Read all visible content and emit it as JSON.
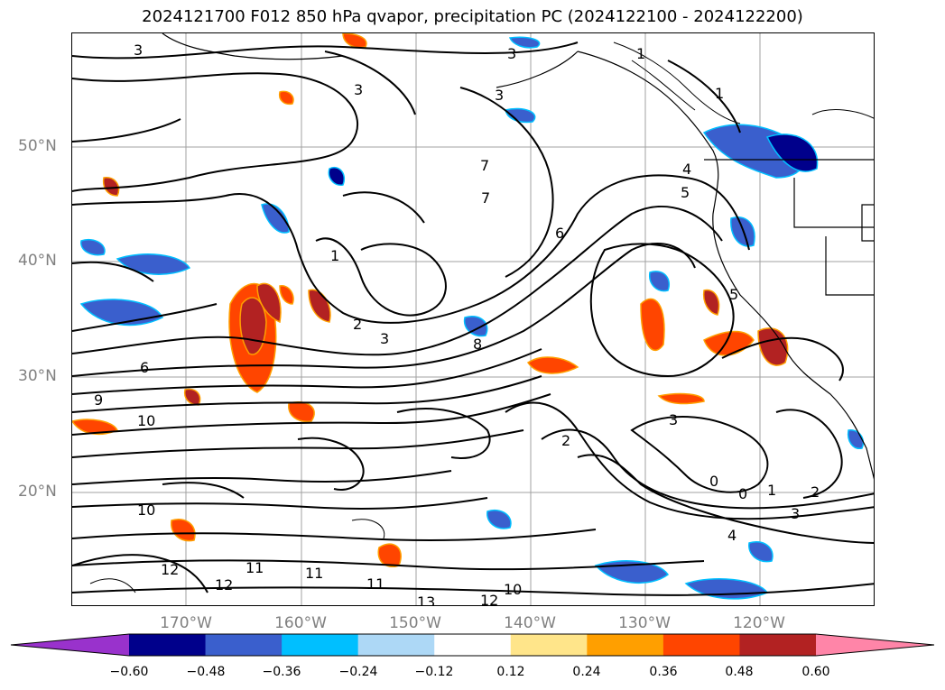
{
  "title": "2024121700 F012 850 hPa qvapor, precipitation PC (2024122100 - 2024122200)",
  "latitude_labels": [
    "50°N",
    "40°N",
    "30°N",
    "20°N"
  ],
  "longitude_labels": [
    "170°W",
    "160°W",
    "150°W",
    "140°W",
    "130°W",
    "120°W"
  ],
  "contour_labels": [
    "3",
    "3",
    "3",
    "3",
    "1",
    "1",
    "4",
    "5",
    "7",
    "7",
    "6",
    "1",
    "2",
    "3",
    "5",
    "6",
    "8",
    "9",
    "10",
    "2",
    "3",
    "0",
    "0",
    "1",
    "2",
    "3",
    "4",
    "10",
    "12",
    "12",
    "11",
    "11",
    "13",
    "12",
    "11",
    "10"
  ],
  "colorbar": {
    "ticks": [
      "−0.60",
      "−0.48",
      "−0.36",
      "−0.24",
      "−0.12",
      "0.12",
      "0.24",
      "0.36",
      "0.48",
      "0.60"
    ],
    "colors": [
      "#9932cc",
      "#00008b",
      "#3a5fcd",
      "#00bfff",
      "#add8f6",
      "#ffffff",
      "#ffe58a",
      "#ff9f00",
      "#ff4500",
      "#b22222",
      "#ff85a8"
    ]
  },
  "colors": {
    "grid": "#a0a0a0",
    "contour": "#000000",
    "positive_strong": "#b22222",
    "positive_mid": "#ff4500",
    "positive_low": "#ff9f00",
    "negative_low": "#00bfff",
    "negative_mid": "#3a5fcd"
  }
}
